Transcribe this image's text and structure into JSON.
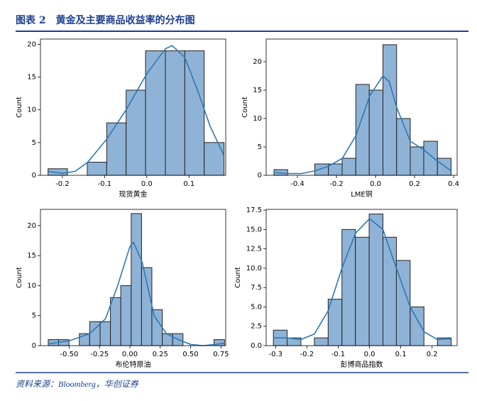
{
  "title": "图表 2　黄金及主要商品收益率的分布图",
  "source": "资料来源：Bloomberg，华创证券",
  "chart_data": [
    {
      "type": "histogram",
      "xlabel": "现货黄金",
      "ylabel": "Count",
      "color": "#8fb3d6",
      "line_color": "#2d79b3",
      "bins": [
        -0.234,
        -0.188,
        -0.141,
        -0.095,
        -0.049,
        -0.003,
        0.044,
        0.09,
        0.136,
        0.183
      ],
      "values": [
        1,
        0,
        2,
        8,
        13,
        19,
        19,
        19,
        5
      ],
      "kde": {
        "x": [
          -0.234,
          -0.2,
          -0.17,
          -0.14,
          -0.095,
          -0.049,
          0,
          0.044,
          0.06,
          0.09,
          0.12,
          0.15,
          0.183
        ],
        "values": [
          0.6,
          0.3,
          0.6,
          2,
          5.5,
          10,
          15.5,
          19.3,
          19.8,
          18,
          13,
          7.5,
          3
        ]
      },
      "xlim": [
        -0.252,
        0.187
      ],
      "ylim": [
        0,
        20.8
      ],
      "xticks": [
        -0.2,
        -0.1,
        {
          "value": 0,
          "label": "0.0"
        },
        0.1
      ],
      "yticks": [
        0,
        5,
        10,
        15,
        20
      ]
    },
    {
      "type": "histogram",
      "xlabel": "LME铜",
      "ylabel": "Count",
      "color": "#8fb3d6",
      "line_color": "#2d79b3",
      "bins": [
        -0.52,
        -0.45,
        -0.381,
        -0.311,
        -0.241,
        -0.171,
        -0.101,
        -0.032,
        0.038,
        0.108,
        0.178,
        0.247,
        0.317,
        0.387
      ],
      "values": [
        1,
        0,
        0,
        2,
        2,
        3,
        16,
        15,
        23,
        10,
        5,
        6,
        3
      ],
      "kde": {
        "x": [
          -0.52,
          -0.45,
          -0.38,
          -0.31,
          -0.24,
          -0.17,
          -0.1,
          -0.03,
          0.038,
          0.07,
          0.108,
          0.178,
          0.247,
          0.317,
          0.387
        ],
        "values": [
          0.5,
          0.3,
          0.3,
          0.8,
          1.6,
          3,
          7,
          14,
          17.5,
          16.5,
          12,
          6,
          4.5,
          2.5,
          0.8
        ]
      },
      "xlim": [
        -0.56,
        0.418
      ],
      "ylim": [
        0,
        24
      ],
      "xticks": [
        -0.4,
        -0.2,
        {
          "value": 0,
          "label": "0.0"
        },
        0.2,
        0.4
      ],
      "yticks": [
        0,
        5,
        10,
        15,
        20
      ]
    },
    {
      "type": "histogram",
      "xlabel": "布伦特原油",
      "ylabel": "Count",
      "color": "#8fb3d6",
      "line_color": "#2d79b3",
      "bins": [
        -0.672,
        -0.587,
        -0.501,
        -0.416,
        -0.331,
        -0.245,
        -0.16,
        -0.075,
        0.011,
        0.096,
        0.181,
        0.267,
        0.352,
        0.437,
        0.523,
        0.608,
        0.693,
        0.779
      ],
      "values": [
        1,
        1,
        0,
        2,
        4,
        4,
        8,
        10,
        22,
        13,
        6,
        2,
        2,
        0,
        0,
        0,
        1
      ],
      "kde": {
        "x": [
          -0.672,
          -0.5,
          -0.33,
          -0.2,
          -0.1,
          0,
          0.03,
          0.1,
          0.2,
          0.3,
          0.4,
          0.5,
          0.6,
          0.7,
          0.779
        ],
        "values": [
          0.3,
          0.8,
          2,
          4.5,
          10,
          16.5,
          17.2,
          14,
          5,
          2,
          1,
          0.2,
          0,
          0.2,
          0.4
        ]
      },
      "xlim": [
        -0.736,
        0.789
      ],
      "ylim": [
        0,
        22.7
      ],
      "xticks": [
        {
          "value": -0.5,
          "label": "-0.50"
        },
        -0.25,
        {
          "value": 0,
          "label": "0.00"
        },
        0.25,
        {
          "value": 0.5,
          "label": "0.50"
        },
        0.75
      ],
      "yticks": [
        0,
        5,
        10,
        15,
        20
      ]
    },
    {
      "type": "histogram",
      "xlabel": "彭博商品指数",
      "ylabel": "Count",
      "color": "#8fb3d6",
      "line_color": "#2d79b3",
      "bins": [
        -0.307,
        -0.263,
        -0.219,
        -0.176,
        -0.132,
        -0.088,
        -0.045,
        -0.001,
        0.043,
        0.086,
        0.13,
        0.174,
        0.217,
        0.261
      ],
      "values": [
        2,
        1,
        0,
        1,
        6,
        15,
        14,
        17,
        14,
        11,
        5,
        0,
        1
      ],
      "kde": {
        "x": [
          -0.307,
          -0.263,
          -0.219,
          -0.176,
          -0.132,
          -0.088,
          -0.045,
          0,
          0.043,
          0.086,
          0.13,
          0.174,
          0.217,
          0.261
        ],
        "values": [
          1,
          1,
          0.8,
          1.5,
          4.5,
          10,
          14.5,
          16.4,
          15,
          10,
          5,
          1.8,
          0.8,
          0.9
        ]
      },
      "xlim": [
        -0.33,
        0.28
      ],
      "ylim": [
        0,
        17.6
      ],
      "xticks": [
        -0.3,
        -0.2,
        -0.1,
        {
          "value": 0,
          "label": "0.0"
        },
        0.1,
        0.2
      ],
      "yticks": [
        {
          "value": 0,
          "label": "0.0"
        },
        2.5,
        {
          "value": 5,
          "label": "5.0"
        },
        7.5,
        {
          "value": 10,
          "label": "10.0"
        },
        12.5,
        {
          "value": 15,
          "label": "15.0"
        },
        17.5
      ]
    }
  ]
}
